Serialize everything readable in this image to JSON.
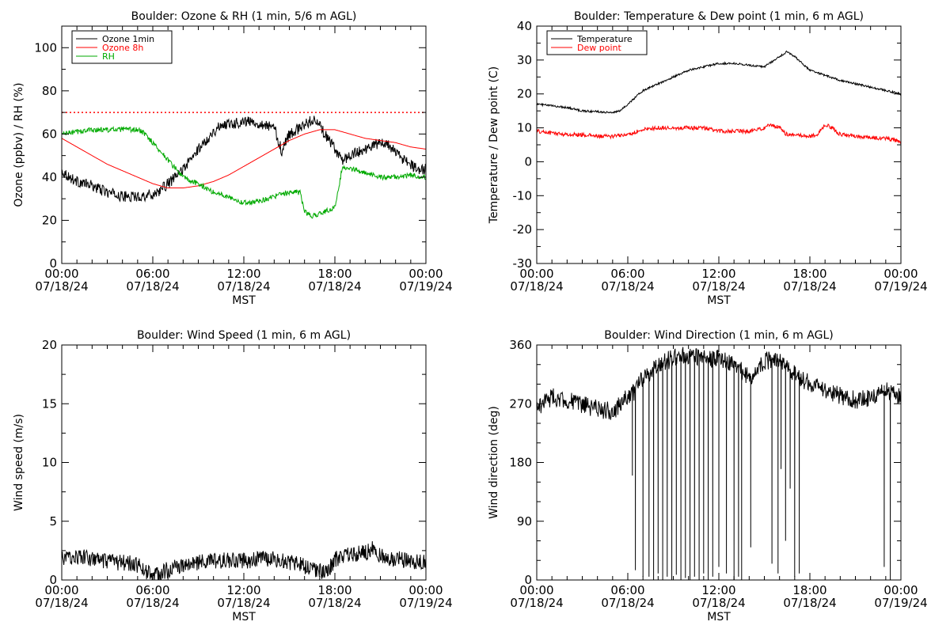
{
  "chart_data": [
    {
      "type": "line",
      "title": "Boulder: Ozone & RH (1 min, 5/6 m AGL)",
      "xlabel": "MST",
      "ylabel": "Ozone (ppbv) / RH (%)",
      "ylim": [
        0,
        110
      ],
      "yticks": [
        0,
        20,
        40,
        60,
        80,
        100
      ],
      "xlim": [
        0,
        24
      ],
      "xticks": [
        {
          "time": "00:00",
          "date": "07/18/24"
        },
        {
          "time": "06:00",
          "date": "07/18/24"
        },
        {
          "time": "12:00",
          "date": "07/18/24"
        },
        {
          "time": "18:00",
          "date": "07/18/24"
        },
        {
          "time": "00:00",
          "date": "07/19/24"
        }
      ],
      "legend": "top-left",
      "reference_line": {
        "y": 70,
        "color": "#ff0000",
        "style": "dotted"
      },
      "series": [
        {
          "name": "Ozone 1min",
          "color": "#000000",
          "noise": 2.5,
          "x": [
            0,
            0.5,
            1,
            2,
            3,
            4,
            5,
            6,
            6.5,
            7,
            7.5,
            8,
            8.5,
            9,
            9.5,
            10,
            10.5,
            11,
            11.5,
            12,
            13,
            14,
            14.5,
            15,
            15.5,
            16,
            16.5,
            17,
            17.5,
            18,
            18.5,
            19,
            20,
            21,
            21.5,
            22,
            22.5,
            23,
            23.5,
            24
          ],
          "values": [
            43,
            40,
            38,
            36,
            33,
            31,
            31,
            32,
            34,
            37,
            40,
            44,
            48,
            53,
            57,
            61,
            64,
            65,
            65,
            66,
            65,
            63,
            52,
            60,
            62,
            64,
            67,
            64,
            58,
            53,
            48,
            50,
            53,
            56,
            55,
            52,
            48,
            46,
            43,
            44
          ]
        },
        {
          "name": "Ozone 8h",
          "color": "#ff0000",
          "noise": 0,
          "x": [
            0,
            1,
            2,
            3,
            4,
            5,
            6,
            7,
            8,
            9,
            10,
            11,
            12,
            13,
            14,
            15,
            16,
            17,
            18,
            19,
            20,
            21,
            22,
            23,
            24
          ],
          "values": [
            58,
            54,
            50,
            46,
            43,
            40,
            37,
            35,
            35,
            36,
            38,
            41,
            45,
            49,
            53,
            57,
            60,
            62,
            62,
            60,
            58,
            57,
            56,
            54,
            53
          ]
        },
        {
          "name": "RH",
          "color": "#00aa00",
          "noise": 1.2,
          "x": [
            0,
            1,
            2,
            3,
            4,
            5,
            5.5,
            6,
            6.5,
            7,
            7.5,
            8,
            8.5,
            9,
            9.5,
            10,
            10.5,
            11,
            12,
            13,
            14,
            15,
            15.7,
            16,
            16.5,
            17,
            18,
            18.3,
            18.5,
            19,
            20,
            21,
            22,
            23,
            24
          ],
          "values": [
            60,
            61,
            62,
            62,
            62,
            62,
            60,
            56,
            52,
            48,
            44,
            40,
            38,
            37,
            35,
            33,
            32,
            31,
            28,
            29,
            31,
            33,
            33,
            24,
            22,
            23,
            26,
            37,
            45,
            44,
            42,
            40,
            40,
            41,
            40
          ]
        }
      ]
    },
    {
      "type": "line",
      "title": "Boulder: Temperature & Dew point (1 min, 6 m AGL)",
      "xlabel": "MST",
      "ylabel": "Temperature / Dew point (C)",
      "ylim": [
        -30,
        40
      ],
      "yticks": [
        -30,
        -20,
        -10,
        0,
        10,
        20,
        30,
        40
      ],
      "xlim": [
        0,
        24
      ],
      "xticks": [
        {
          "time": "00:00",
          "date": "07/18/24"
        },
        {
          "time": "06:00",
          "date": "07/18/24"
        },
        {
          "time": "12:00",
          "date": "07/18/24"
        },
        {
          "time": "18:00",
          "date": "07/18/24"
        },
        {
          "time": "00:00",
          "date": "07/19/24"
        }
      ],
      "legend": "top-left",
      "series": [
        {
          "name": "Temperature",
          "color": "#000000",
          "noise": 0.3,
          "x": [
            0,
            1,
            2,
            3,
            4,
            5,
            5.5,
            6,
            6.5,
            7,
            8,
            9,
            10,
            11,
            12,
            13,
            14,
            15,
            16,
            16.5,
            17,
            17.5,
            18,
            19,
            20,
            21,
            22,
            23,
            24
          ],
          "values": [
            17,
            16.5,
            16,
            15,
            14.8,
            14.5,
            15,
            17,
            19,
            21,
            23,
            25,
            27,
            28,
            29,
            29,
            28.5,
            28,
            31,
            32.5,
            31,
            29,
            27,
            25.5,
            24,
            23,
            22,
            21,
            20
          ]
        },
        {
          "name": "Dew point",
          "color": "#ff0000",
          "noise": 0.6,
          "x": [
            0,
            1,
            2,
            3,
            4,
            5,
            6,
            7,
            8,
            9,
            10,
            11,
            12,
            13,
            14,
            15,
            15.5,
            16,
            16.5,
            17,
            18,
            18.5,
            19,
            19.5,
            20,
            21,
            22,
            23,
            24
          ],
          "values": [
            9,
            8.5,
            8,
            8,
            7.5,
            7.5,
            8,
            9.5,
            10,
            10,
            10,
            10,
            9,
            9,
            9,
            10,
            11,
            10,
            8,
            8,
            7.5,
            8,
            11,
            10,
            8,
            7.5,
            7,
            7,
            6
          ]
        }
      ]
    },
    {
      "type": "line",
      "title": "Boulder: Wind Speed (1 min, 6 m AGL)",
      "xlabel": "MST",
      "ylabel": "Wind speed (m/s)",
      "ylim": [
        0,
        20
      ],
      "yticks": [
        0,
        5,
        10,
        15,
        20
      ],
      "xlim": [
        0,
        24
      ],
      "xticks": [
        {
          "time": "00:00",
          "date": "07/18/24"
        },
        {
          "time": "06:00",
          "date": "07/18/24"
        },
        {
          "time": "12:00",
          "date": "07/18/24"
        },
        {
          "time": "18:00",
          "date": "07/18/24"
        },
        {
          "time": "00:00",
          "date": "07/19/24"
        }
      ],
      "series": [
        {
          "color": "#000000",
          "noise": 0.7,
          "x": [
            0,
            1,
            2,
            3,
            4,
            5,
            5.5,
            6,
            6.5,
            7,
            8,
            9,
            10,
            11,
            12,
            13,
            14,
            15,
            16,
            17,
            17.5,
            18,
            19,
            20,
            20.5,
            21,
            22,
            23,
            24
          ],
          "values": [
            1.8,
            2,
            1.8,
            1.5,
            1.5,
            1.3,
            0.8,
            0.4,
            0.5,
            0.9,
            1.2,
            1.5,
            1.6,
            1.7,
            1.6,
            1.8,
            1.8,
            1.5,
            1.2,
            0.8,
            0.6,
            1.8,
            2.2,
            2.3,
            2.8,
            2,
            1.8,
            1.6,
            1.6
          ]
        }
      ]
    },
    {
      "type": "line",
      "title": "Boulder: Wind Direction (1 min, 6 m AGL)",
      "xlabel": "MST",
      "ylabel": "Wind direction (deg)",
      "ylim": [
        0,
        360
      ],
      "yticks": [
        0,
        90,
        180,
        270,
        360
      ],
      "xlim": [
        0,
        24
      ],
      "xticks": [
        {
          "time": "00:00",
          "date": "07/18/24"
        },
        {
          "time": "06:00",
          "date": "07/18/24"
        },
        {
          "time": "12:00",
          "date": "07/18/24"
        },
        {
          "time": "18:00",
          "date": "07/18/24"
        },
        {
          "time": "00:00",
          "date": "07/19/24"
        }
      ],
      "series": [
        {
          "color": "#000000",
          "noise": 14,
          "x": [
            0,
            1,
            2,
            3,
            4,
            5,
            6,
            6.5,
            7,
            8,
            9,
            10,
            11,
            12,
            13,
            14,
            15,
            16,
            17,
            18,
            19,
            20,
            21,
            22,
            23,
            24
          ],
          "values": [
            265,
            280,
            275,
            268,
            262,
            258,
            280,
            290,
            310,
            330,
            340,
            345,
            340,
            340,
            330,
            310,
            335,
            340,
            315,
            300,
            290,
            282,
            276,
            278,
            290,
            280
          ],
          "drops": [
            {
              "x": 6.3,
              "y": 160
            },
            {
              "x": 6.5,
              "y": 15
            },
            {
              "x": 7,
              "y": 5
            },
            {
              "x": 7.4,
              "y": 5
            },
            {
              "x": 7.7,
              "y": 0
            },
            {
              "x": 8,
              "y": 10
            },
            {
              "x": 8.3,
              "y": 0
            },
            {
              "x": 8.6,
              "y": 5
            },
            {
              "x": 8.9,
              "y": 0
            },
            {
              "x": 9.2,
              "y": 8
            },
            {
              "x": 9.5,
              "y": 0
            },
            {
              "x": 9.8,
              "y": 3
            },
            {
              "x": 10.1,
              "y": 0
            },
            {
              "x": 10.4,
              "y": 5
            },
            {
              "x": 10.7,
              "y": 0
            },
            {
              "x": 11,
              "y": 10
            },
            {
              "x": 11.3,
              "y": 0
            },
            {
              "x": 11.6,
              "y": 5
            },
            {
              "x": 12,
              "y": 20
            },
            {
              "x": 12.5,
              "y": 10
            },
            {
              "x": 13,
              "y": 0
            },
            {
              "x": 13.3,
              "y": 5
            },
            {
              "x": 13.5,
              "y": 0
            },
            {
              "x": 14.1,
              "y": 50
            },
            {
              "x": 15.5,
              "y": 25
            },
            {
              "x": 15.9,
              "y": 10
            },
            {
              "x": 16.1,
              "y": 170
            },
            {
              "x": 16.4,
              "y": 60
            },
            {
              "x": 16.7,
              "y": 140
            },
            {
              "x": 17,
              "y": 5
            },
            {
              "x": 17.3,
              "y": 10
            },
            {
              "x": 22.9,
              "y": 20
            },
            {
              "x": 23.3,
              "y": 0
            }
          ]
        }
      ]
    }
  ]
}
